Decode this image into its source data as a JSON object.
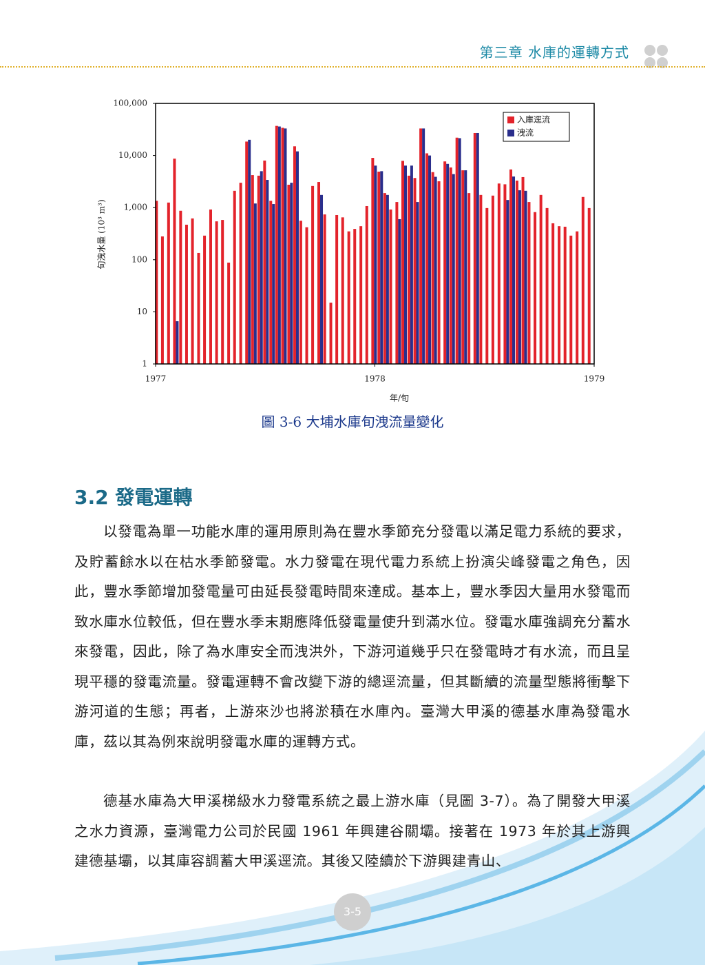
{
  "header": {
    "chapter": "第三章  水庫的運轉方式"
  },
  "chart_data": {
    "type": "bar",
    "y_label": "旬洩水量 (10³ m³)",
    "x_label": "年/旬",
    "log_scale": true,
    "grid": false,
    "legend": "upper right",
    "xlim": [
      1977,
      1979
    ],
    "xticks": [
      1977,
      1978,
      1979
    ],
    "ylim": [
      1,
      100000
    ],
    "yticks": [
      1,
      10,
      100,
      {
        "value": 1000,
        "label": "1,000"
      },
      {
        "value": 10000,
        "label": "10,000"
      },
      {
        "value": 100000,
        "label": "100,000"
      }
    ],
    "x": [
      1977.012,
      1977.039,
      1977.067,
      1977.094,
      1977.122,
      1977.149,
      1977.176,
      1977.204,
      1977.231,
      1977.259,
      1977.286,
      1977.313,
      1977.341,
      1977.368,
      1977.396,
      1977.423,
      1977.45,
      1977.478,
      1977.505,
      1977.533,
      1977.56,
      1977.587,
      1977.615,
      1977.642,
      1977.67,
      1977.697,
      1977.724,
      1977.752,
      1977.779,
      1977.807,
      1977.834,
      1977.861,
      1977.889,
      1977.916,
      1977.944,
      1977.971,
      1977.998,
      1978.026,
      1978.053,
      1978.08,
      1978.108,
      1978.135,
      1978.163,
      1978.19,
      1978.217,
      1978.245,
      1978.272,
      1978.3,
      1978.327,
      1978.354,
      1978.382,
      1978.409,
      1978.437,
      1978.464,
      1978.491,
      1978.519,
      1978.546,
      1978.574,
      1978.601,
      1978.628,
      1978.656,
      1978.683,
      1978.711,
      1978.738,
      1978.765,
      1978.793,
      1978.82,
      1978.848,
      1978.875,
      1978.902,
      1978.93,
      1978.957,
      1978.985
    ],
    "series": [
      {
        "name": "入庫逕流",
        "color": "#e3232b",
        "values": [
          1350,
          280,
          1250,
          8700,
          870,
          470,
          620,
          135,
          290,
          920,
          545,
          580,
          88,
          2100,
          3000,
          18500,
          4200,
          4100,
          8000,
          1350,
          37000,
          34000,
          2750,
          15000,
          560,
          420,
          2600,
          3100,
          740,
          15,
          720,
          650,
          350,
          390,
          440,
          1070,
          9000,
          4900,
          1900,
          920,
          1280,
          7900,
          4100,
          3700,
          33000,
          11000,
          4800,
          3200,
          7700,
          5900,
          22000,
          5200,
          1900,
          27000,
          1750,
          980,
          1700,
          2900,
          2800,
          5400,
          3300,
          3850,
          1280,
          820,
          1750,
          980,
          500,
          440,
          430,
          290,
          350,
          1600,
          980
        ]
      },
      {
        "name": "洩流",
        "color": "#2a2e8c",
        "values": [
          null,
          null,
          null,
          6.6,
          null,
          null,
          null,
          null,
          null,
          null,
          null,
          null,
          null,
          null,
          null,
          20000,
          1200,
          5000,
          3400,
          1170,
          36000,
          33000,
          3000,
          12000,
          null,
          null,
          null,
          1750,
          null,
          null,
          null,
          null,
          null,
          null,
          null,
          null,
          6400,
          5000,
          1750,
          null,
          600,
          6400,
          6400,
          1280,
          33000,
          10000,
          3900,
          null,
          6900,
          4400,
          21500,
          5200,
          null,
          27000,
          null,
          null,
          null,
          null,
          1400,
          3950,
          2150,
          2100,
          null,
          null,
          null,
          null,
          null,
          null,
          null,
          null,
          null,
          null,
          null
        ]
      }
    ]
  },
  "figure_caption": "圖 3-6  大埔水庫旬洩流量變化",
  "section": {
    "heading": "3.2 發電運轉",
    "paragraphs": [
      "以發電為單一功能水庫的運用原則為在豐水季節充分發電以滿足電力系統的要求，及貯蓄餘水以在枯水季節發電。水力發電在現代電力系統上扮演尖峰發電之角色，因此，豐水季節增加發電量可由延長發電時間來達成。基本上，豐水季因大量用水發電而致水庫水位較低，但在豐水季末期應降低發電量使升到滿水位。發電水庫強調充分蓄水來發電，因此，除了為水庫安全而洩洪外，下游河道幾乎只在發電時才有水流，而且呈現平穩的發電流量。發電運轉不會改變下游的總逕流量，但其斷續的流量型態將衝擊下游河道的生態；再者，上游來沙也將淤積在水庫內。臺灣大甲溪的德基水庫為發電水庫，茲以其為例來說明發電水庫的運轉方式。",
      "德基水庫為大甲溪梯級水力發電系統之最上游水庫（見圖 3-7）。為了開發大甲溪之水力資源，臺灣電力公司於民國 1961 年興建谷關壩。接著在 1973 年於其上游興建德基壩，以其庫容調蓄大甲溪逕流。其後又陸續於下游興建青山、"
    ]
  },
  "page_number": "3-5"
}
